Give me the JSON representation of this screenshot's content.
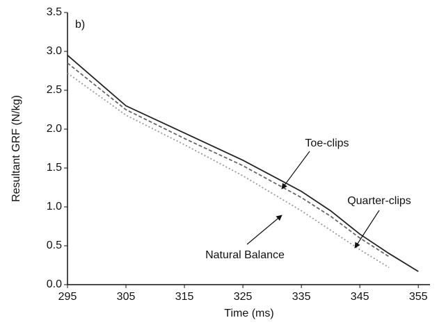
{
  "chart_data": {
    "type": "line",
    "panel_label": "b)",
    "x_label": "Time (ms)",
    "y_label": "Resultant GRF (N/kg)",
    "x": [
      295,
      305,
      315,
      325,
      335,
      340,
      345,
      350,
      355
    ],
    "series": [
      {
        "name": "Toe-clips",
        "color": "#222222",
        "dash": "none",
        "values": [
          2.95,
          2.3,
          1.95,
          1.6,
          1.2,
          0.95,
          0.65,
          0.4,
          0.17
        ]
      },
      {
        "name": "Quarter-clips",
        "color": "#666666",
        "dash": "5 3",
        "values": [
          2.85,
          2.25,
          1.88,
          1.53,
          1.12,
          0.88,
          0.6,
          0.36,
          null
        ]
      },
      {
        "name": "Natural Balance",
        "color": "#999999",
        "dash": "2 3",
        "values": [
          2.72,
          2.18,
          1.8,
          1.4,
          0.95,
          0.7,
          0.45,
          0.22,
          null
        ]
      }
    ],
    "xlim": [
      295,
      357
    ],
    "ylim": [
      0,
      3.5
    ],
    "xticks": [
      295,
      305,
      315,
      325,
      335,
      345,
      355
    ],
    "yticks": [
      {
        "value": 0,
        "label": "0.0"
      },
      0.5,
      {
        "value": 1,
        "label": "1.0"
      },
      1.5,
      {
        "value": 2,
        "label": "2.0"
      },
      2.5,
      {
        "value": 3,
        "label": "3.0"
      },
      3.5
    ]
  }
}
